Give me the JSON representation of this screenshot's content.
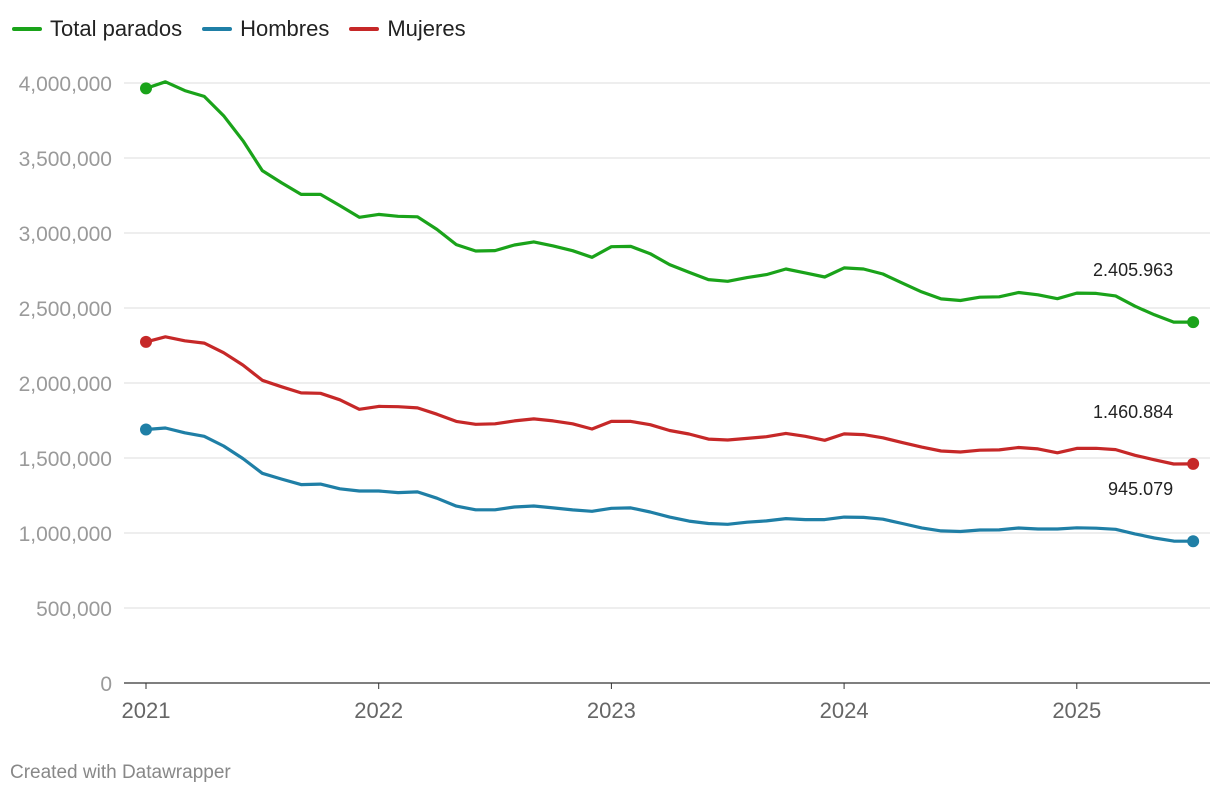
{
  "chart_data": {
    "type": "line",
    "title": "",
    "xlabel": "",
    "ylabel": "",
    "x_ticks": [
      "2021",
      "2022",
      "2023",
      "2024",
      "2025"
    ],
    "y_ticks": [
      "0",
      "500,000",
      "1,000,000",
      "1,500,000",
      "2,000,000",
      "2,500,000",
      "3,000,000",
      "3,500,000",
      "4,000,000"
    ],
    "ylim": [
      0,
      4000000
    ],
    "xlim": [
      2021.0,
      2025.667
    ],
    "x_start": 2021.0,
    "x_step_months": 1,
    "legend_position": "top-left",
    "series": [
      {
        "name": "Total parados",
        "color": "#1aa31a",
        "end_label": "2.405.963",
        "values": [
          3964000,
          4008000,
          3949000,
          3911000,
          3782000,
          3615000,
          3416000,
          3334000,
          3257000,
          3257000,
          3183000,
          3105000,
          3124000,
          3111000,
          3108000,
          3024000,
          2923000,
          2880000,
          2883000,
          2920000,
          2941000,
          2914000,
          2882000,
          2838000,
          2909000,
          2911000,
          2862000,
          2789000,
          2739000,
          2689000,
          2678000,
          2703000,
          2723000,
          2760000,
          2734000,
          2707000,
          2767000,
          2760000,
          2727000,
          2666000,
          2607000,
          2561000,
          2550000,
          2572000,
          2575000,
          2603000,
          2588000,
          2562000,
          2599000,
          2597000,
          2581000,
          2512000,
          2455000,
          2406000,
          2405963
        ]
      },
      {
        "name": "Hombres",
        "color": "#1f7fa6",
        "end_label": "945.079",
        "values": [
          1690000,
          1700000,
          1668000,
          1645000,
          1580000,
          1496000,
          1398000,
          1359000,
          1323000,
          1326000,
          1295000,
          1280000,
          1280000,
          1269000,
          1274000,
          1232000,
          1179000,
          1155000,
          1155000,
          1173000,
          1180000,
          1167000,
          1154000,
          1145000,
          1165000,
          1167000,
          1140000,
          1106000,
          1079000,
          1063000,
          1058000,
          1072000,
          1081000,
          1096000,
          1089000,
          1089000,
          1106000,
          1104000,
          1092000,
          1063000,
          1034000,
          1014000,
          1010000,
          1020000,
          1021000,
          1033000,
          1027000,
          1027000,
          1035000,
          1032000,
          1025000,
          994000,
          967000,
          946000,
          945079
        ]
      },
      {
        "name": "Mujeres",
        "color": "#c62828",
        "end_label": "1.460.884",
        "values": [
          2274000,
          2308000,
          2281000,
          2266000,
          2202000,
          2119000,
          2018000,
          1975000,
          1934000,
          1931000,
          1888000,
          1825000,
          1844000,
          1842000,
          1834000,
          1792000,
          1744000,
          1725000,
          1728000,
          1747000,
          1761000,
          1747000,
          1728000,
          1693000,
          1744000,
          1744000,
          1722000,
          1683000,
          1660000,
          1626000,
          1620000,
          1631000,
          1642000,
          1664000,
          1645000,
          1618000,
          1661000,
          1656000,
          1635000,
          1603000,
          1573000,
          1547000,
          1540000,
          1552000,
          1554000,
          1570000,
          1561000,
          1535000,
          1564000,
          1565000,
          1556000,
          1518000,
          1488000,
          1460000,
          1460884
        ]
      }
    ]
  },
  "footer": "Created with Datawrapper"
}
